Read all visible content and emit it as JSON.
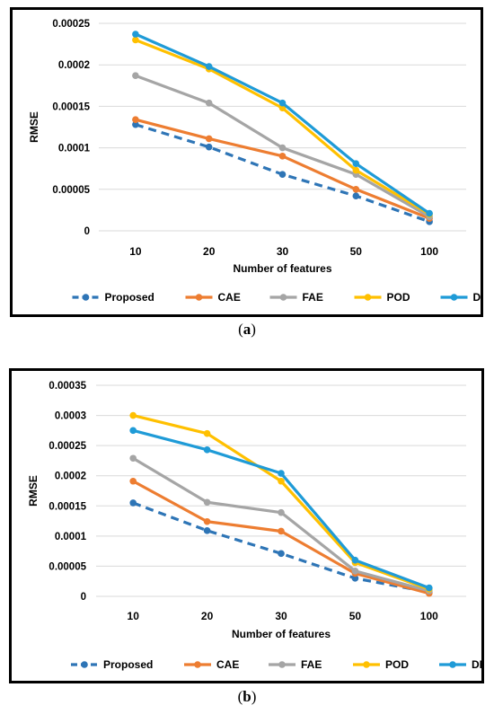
{
  "colors": {
    "Proposed": "#2E75B6",
    "CAE": "#ED7D31",
    "FAE": "#A5A5A5",
    "POD": "#FFC000",
    "DMD": "#1F9BD7",
    "grid": "#D9D9D9",
    "text": "#000000"
  },
  "captions": {
    "a_open": "(",
    "a_letter": "a",
    "a_close": ")",
    "b_open": "(",
    "b_letter": "b",
    "b_close": ")"
  },
  "chart_data": [
    {
      "type": "line",
      "title": "",
      "xlabel": "Number of features",
      "ylabel": "RMSE",
      "categories": [
        "10",
        "20",
        "30",
        "50",
        "100"
      ],
      "ylim": [
        0,
        0.00025
      ],
      "yticks": [
        "0",
        "0.00005",
        "0.0001",
        "0.00015",
        "0.0002",
        "0.00025"
      ],
      "ytick_values": [
        0,
        5e-05,
        0.0001,
        0.00015,
        0.0002,
        0.00025
      ],
      "grid": true,
      "legend_position": "bottom",
      "series": [
        {
          "name": "Proposed",
          "style": "dashed",
          "values": [
            0.000128,
            0.000101,
            6.8e-05,
            4.2e-05,
            1.1e-05
          ]
        },
        {
          "name": "CAE",
          "style": "solid",
          "values": [
            0.000134,
            0.000111,
            9e-05,
            5e-05,
            1.5e-05
          ]
        },
        {
          "name": "FAE",
          "style": "solid",
          "values": [
            0.000187,
            0.000154,
            0.0001,
            6.8e-05,
            1.7e-05
          ]
        },
        {
          "name": "POD",
          "style": "solid",
          "values": [
            0.00023,
            0.000195,
            0.000148,
            7.3e-05,
            2e-05
          ]
        },
        {
          "name": "DMD",
          "style": "solid",
          "values": [
            0.000237,
            0.000198,
            0.000154,
            8.1e-05,
            2.1e-05
          ]
        }
      ]
    },
    {
      "type": "line",
      "title": "",
      "xlabel": "Number of features",
      "ylabel": "RMSE",
      "categories": [
        "10",
        "20",
        "30",
        "50",
        "100"
      ],
      "ylim": [
        0,
        0.00035
      ],
      "yticks": [
        "0",
        "0.00005",
        "0.0001",
        "0.00015",
        "0.0002",
        "0.00025",
        "0.0003",
        "0.00035"
      ],
      "ytick_values": [
        0,
        5e-05,
        0.0001,
        0.00015,
        0.0002,
        0.00025,
        0.0003,
        0.00035
      ],
      "grid": true,
      "legend_position": "bottom",
      "series": [
        {
          "name": "Proposed",
          "style": "dashed",
          "values": [
            0.000155,
            0.000109,
            7.1e-05,
            3e-05,
            7e-06
          ]
        },
        {
          "name": "CAE",
          "style": "solid",
          "values": [
            0.000191,
            0.000124,
            0.000108,
            3.8e-05,
            5e-06
          ]
        },
        {
          "name": "FAE",
          "style": "solid",
          "values": [
            0.000229,
            0.000156,
            0.000139,
            4.2e-05,
            9e-06
          ]
        },
        {
          "name": "POD",
          "style": "solid",
          "values": [
            0.0003,
            0.00027,
            0.000191,
            5.6e-05,
            1.2e-05
          ]
        },
        {
          "name": "DMD",
          "style": "solid",
          "values": [
            0.000275,
            0.000243,
            0.000204,
            6e-05,
            1.4e-05
          ]
        }
      ]
    }
  ]
}
